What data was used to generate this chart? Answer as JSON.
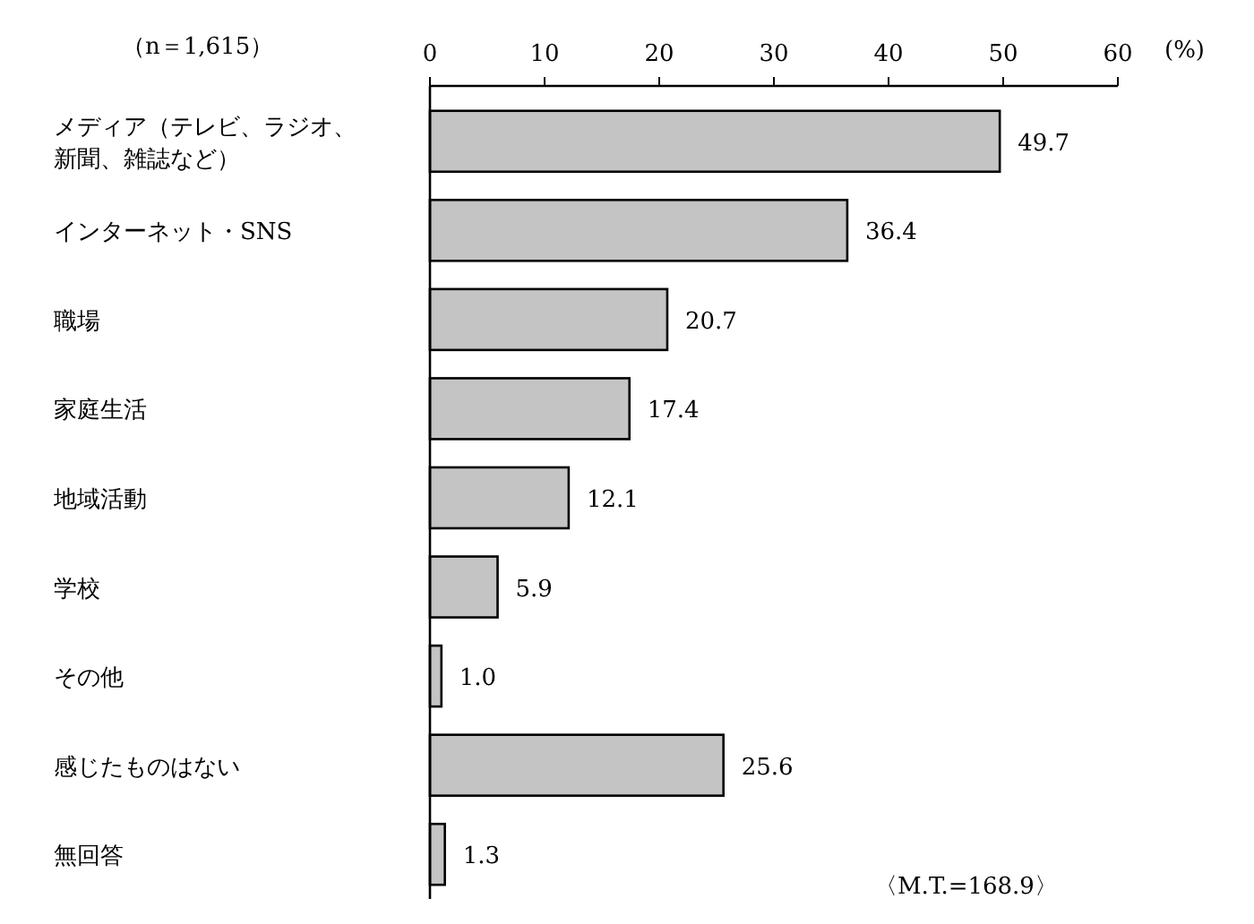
{
  "chart_data": {
    "type": "bar",
    "orientation": "horizontal",
    "categories": [
      "メディア（テレビ、ラジオ、新聞、雑誌など）",
      "インターネット・SNS",
      "職場",
      "家庭生活",
      "地域活動",
      "学校",
      "その他",
      "感じたものはない",
      "無回答"
    ],
    "values": [
      49.7,
      36.4,
      20.7,
      17.4,
      12.1,
      5.9,
      1.0,
      25.6,
      1.3
    ],
    "value_labels": [
      "49.7",
      "36.4",
      "20.7",
      "17.4",
      "12.1",
      "5.9",
      "1.0",
      "25.6",
      "1.3"
    ],
    "color": "#c4c4c4",
    "xlim": [
      0,
      60
    ],
    "xticks": [
      0,
      10,
      20,
      30,
      40,
      50,
      60
    ],
    "xlabel": "(%)",
    "annotations": [
      "（n＝1,615）",
      "〈M.T.=168.9〉"
    ],
    "grid": false
  }
}
